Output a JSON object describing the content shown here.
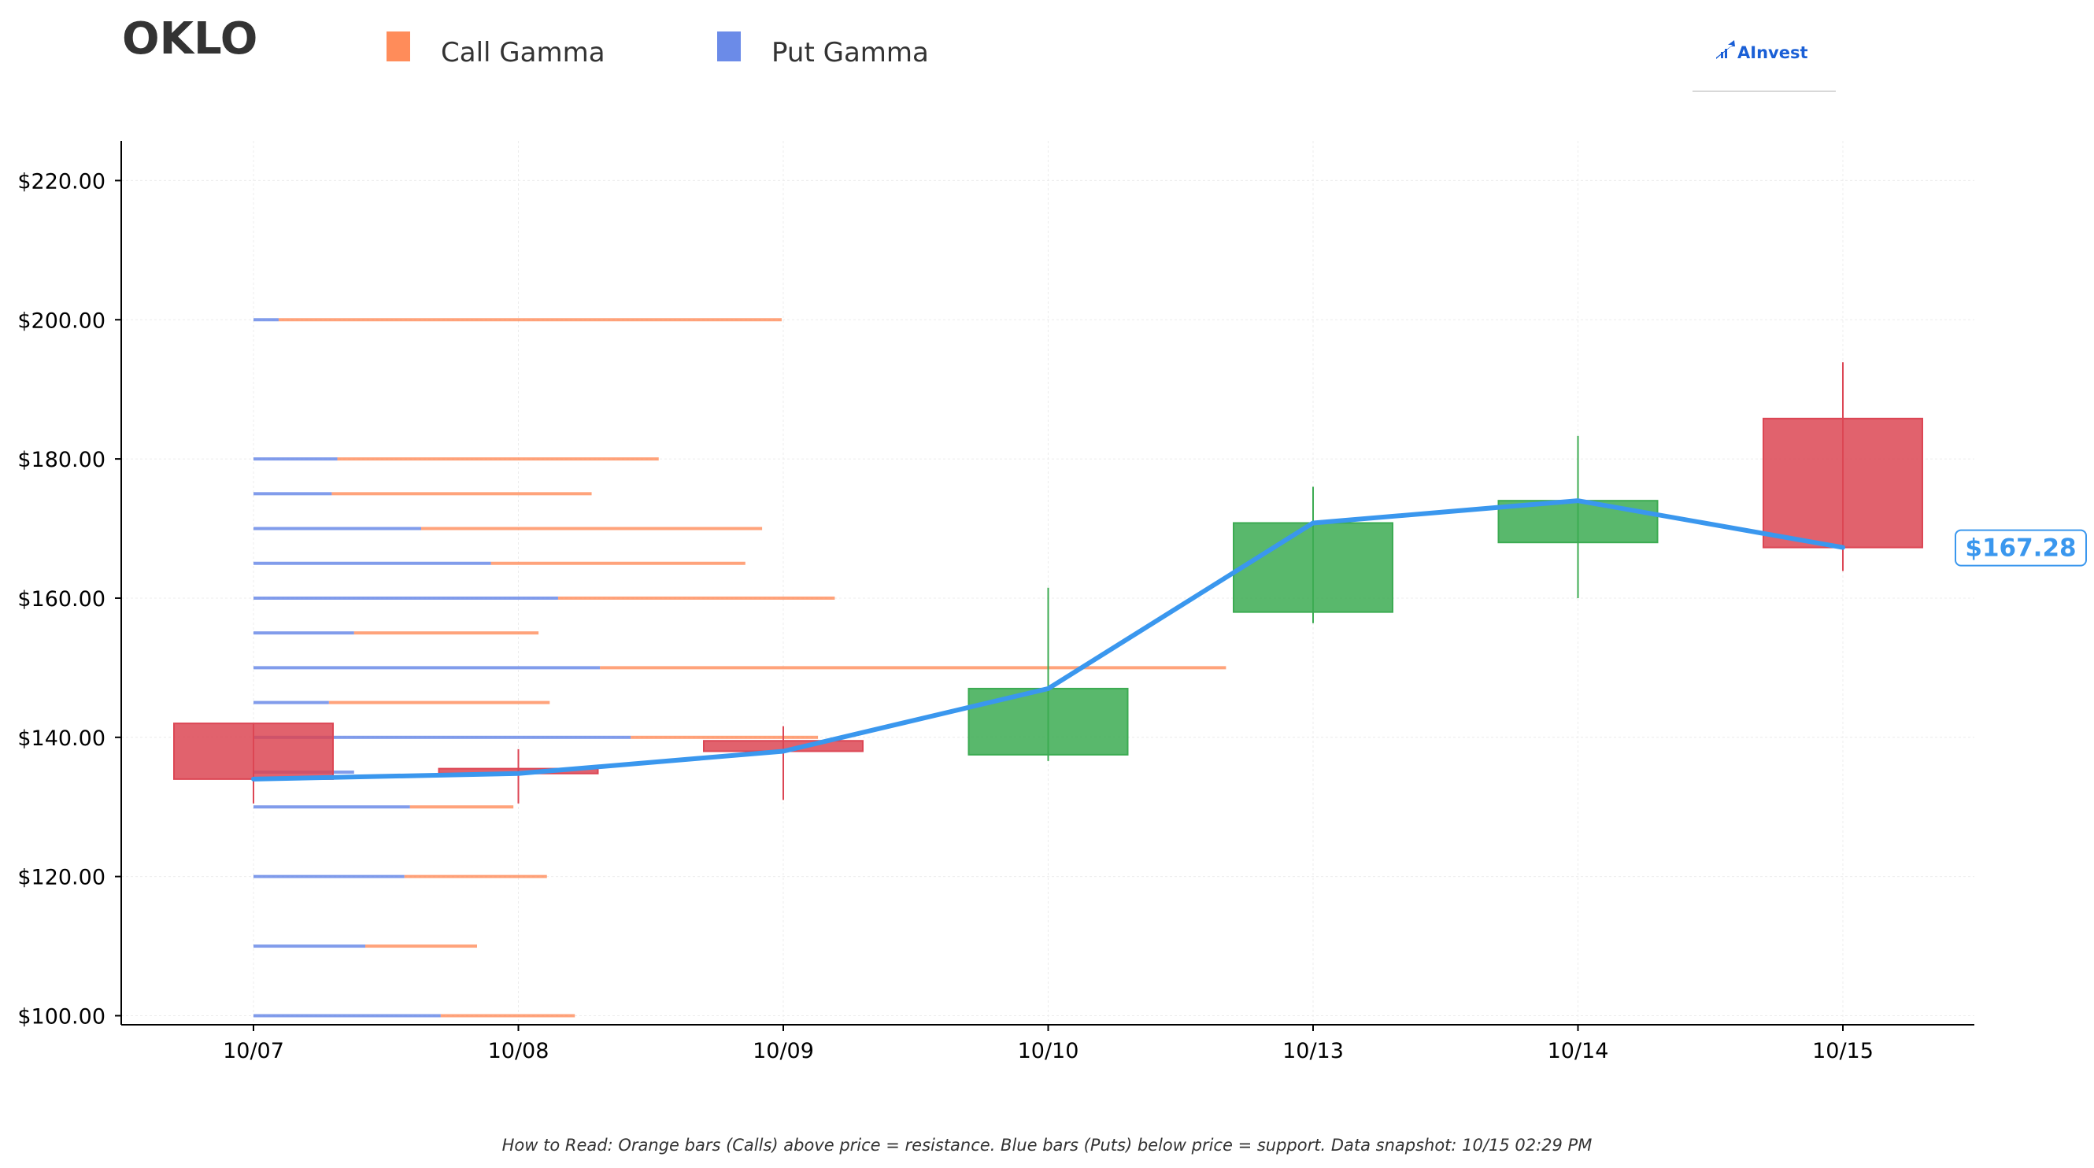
{
  "title": "OKLO",
  "legend": [
    {
      "label": "Call Gamma",
      "color": "#ff8c5a"
    },
    {
      "label": "Put Gamma",
      "color": "#6b8be8"
    }
  ],
  "brand": {
    "label": "AInvest",
    "color": "#1a5fd6",
    "icon": "chart-arrow-icon"
  },
  "footnote": "How to Read: Orange bars (Calls) above price = resistance. Blue bars (Puts) below price = support. Data snapshot: 10/15 02:29 PM",
  "colors": {
    "up": "#3cab52",
    "down": "#dc4654",
    "price_line": "#3a97ee",
    "call": "#ff8c5a",
    "put": "#6b8be8"
  },
  "current_price_label": "$167.28",
  "chart_data": {
    "type": "candlestick",
    "categories": [
      "10/07",
      "10/08",
      "10/09",
      "10/10",
      "10/13",
      "10/14",
      "10/15"
    ],
    "ohlc": [
      {
        "date": "10/07",
        "open": 142.0,
        "high": 142.0,
        "low": 130.5,
        "close": 134.0
      },
      {
        "date": "10/08",
        "open": 135.5,
        "high": 138.3,
        "low": 130.5,
        "close": 134.8
      },
      {
        "date": "10/09",
        "open": 139.5,
        "high": 141.6,
        "low": 131.0,
        "close": 138.0
      },
      {
        "date": "10/10",
        "open": 137.5,
        "high": 161.5,
        "low": 136.6,
        "close": 147.0
      },
      {
        "date": "10/13",
        "open": 158.0,
        "high": 176.0,
        "low": 156.4,
        "close": 170.8
      },
      {
        "date": "10/14",
        "open": 168.0,
        "high": 183.3,
        "low": 160.0,
        "close": 174.0
      },
      {
        "date": "10/15",
        "open": 185.8,
        "high": 193.9,
        "low": 163.9,
        "close": 167.28
      }
    ],
    "price_line": {
      "values": [
        134.0,
        134.8,
        138.0,
        147.0,
        170.8,
        174.0,
        167.28
      ]
    },
    "gamma_levels": [
      {
        "strike": 100,
        "put": 0.67,
        "call": 0.48
      },
      {
        "strike": 110,
        "put": 0.4,
        "call": 0.4
      },
      {
        "strike": 120,
        "put": 0.54,
        "call": 0.51
      },
      {
        "strike": 130,
        "put": 0.56,
        "call": 0.37
      },
      {
        "strike": 135,
        "put": 0.36,
        "call": 0.0
      },
      {
        "strike": 140,
        "put": 1.35,
        "call": 0.67
      },
      {
        "strike": 145,
        "put": 0.27,
        "call": 0.79
      },
      {
        "strike": 150,
        "put": 1.24,
        "call": 2.24
      },
      {
        "strike": 155,
        "put": 0.36,
        "call": 0.66
      },
      {
        "strike": 160,
        "put": 1.09,
        "call": 0.99
      },
      {
        "strike": 165,
        "put": 0.85,
        "call": 0.91
      },
      {
        "strike": 170,
        "put": 0.6,
        "call": 1.22
      },
      {
        "strike": 175,
        "put": 0.28,
        "call": 0.93
      },
      {
        "strike": 180,
        "put": 0.3,
        "call": 1.15
      },
      {
        "strike": 200,
        "put": 0.09,
        "call": 1.8
      }
    ],
    "y_ticks": [
      100,
      120,
      140,
      160,
      180,
      200,
      220
    ],
    "y_tick_labels": [
      "$100.00",
      "$120.00",
      "$140.00",
      "$160.00",
      "$180.00",
      "$200.00",
      "$220.00"
    ],
    "ylim": [
      98.7,
      225.7
    ],
    "grid": true,
    "legend_position": "top-left"
  }
}
